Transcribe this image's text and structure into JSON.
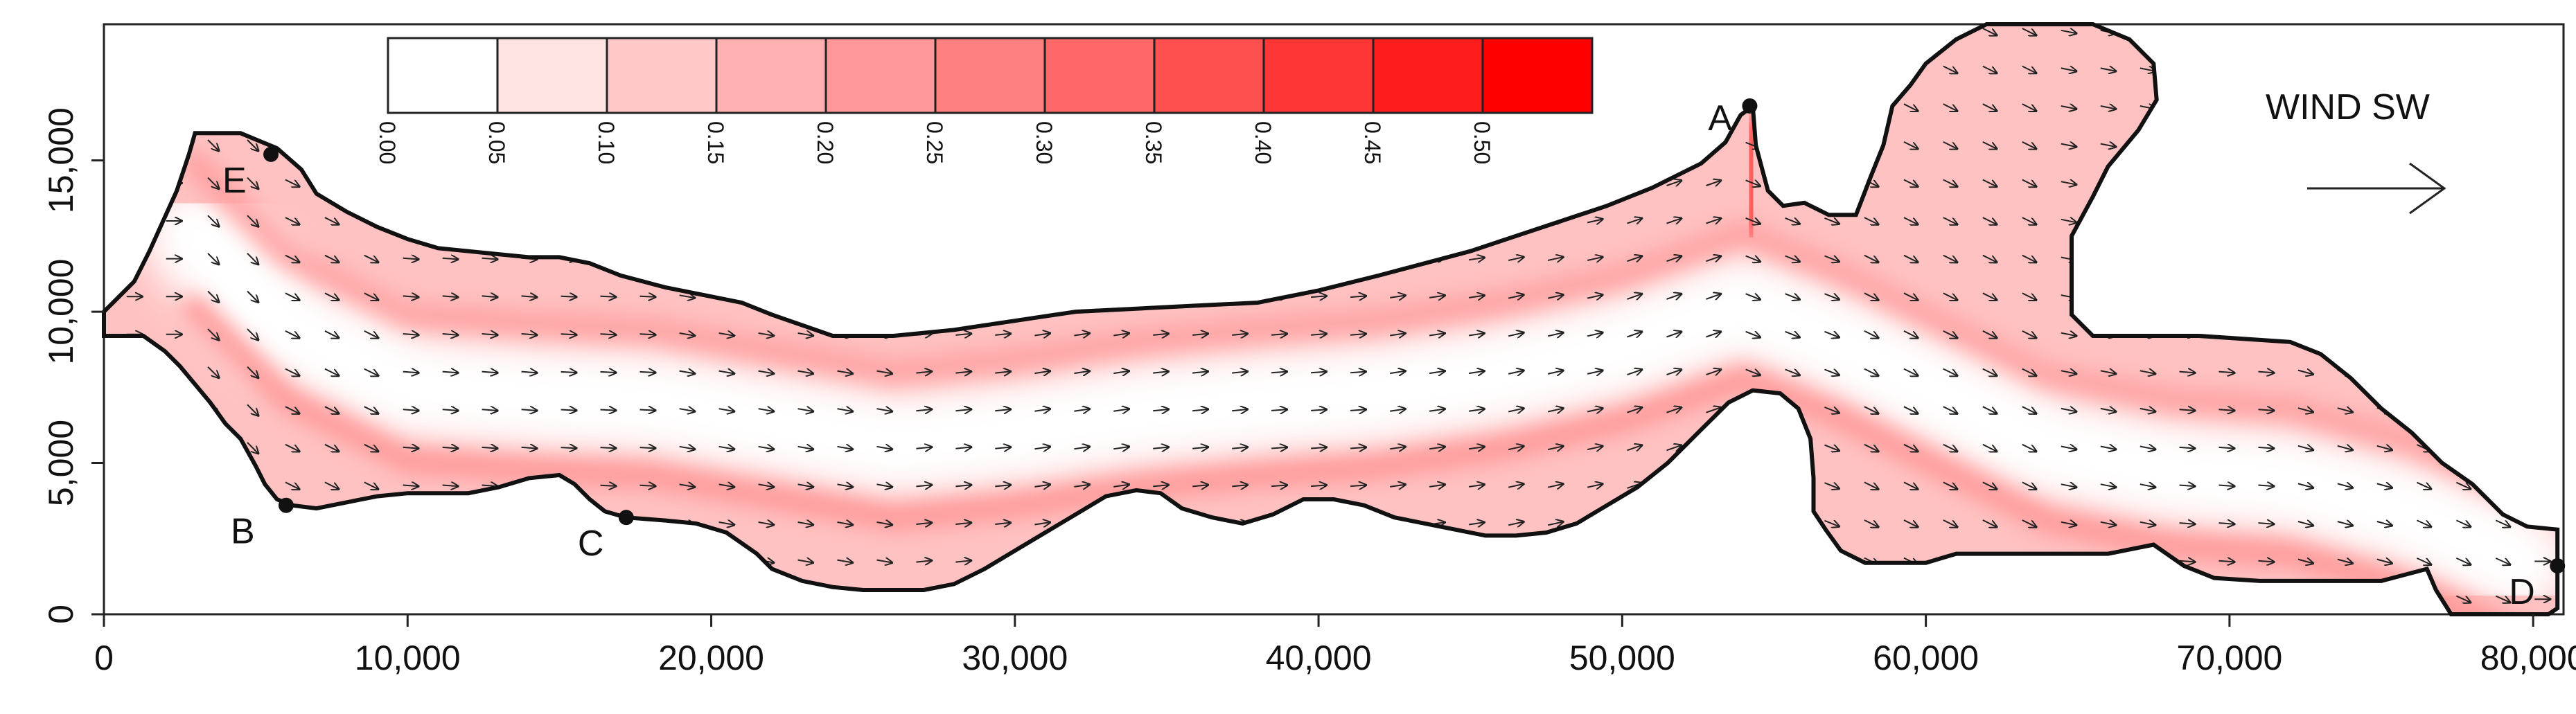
{
  "chart_data": {
    "type": "heatmap",
    "title": "",
    "xlabel": "",
    "ylabel": "",
    "xlim": [
      0,
      81000
    ],
    "ylim": [
      0,
      19500
    ],
    "x_ticks": [
      {
        "value": 0,
        "label": "0"
      },
      {
        "value": 10000,
        "label": "10,000"
      },
      {
        "value": 20000,
        "label": "20,000"
      },
      {
        "value": 30000,
        "label": "30,000"
      },
      {
        "value": 40000,
        "label": "40,000"
      },
      {
        "value": 50000,
        "label": "50,000"
      },
      {
        "value": 60000,
        "label": "60,000"
      },
      {
        "value": 70000,
        "label": "70,000"
      },
      {
        "value": 80000,
        "label": "80,000"
      }
    ],
    "y_ticks": [
      {
        "value": 0,
        "label": "0"
      },
      {
        "value": 5000,
        "label": "5,000"
      },
      {
        "value": 10000,
        "label": "10,000"
      },
      {
        "value": 15000,
        "label": "15,000"
      }
    ],
    "colorbar": {
      "breaks": [
        "0.00",
        "0.05",
        "0.10",
        "0.15",
        "0.20",
        "0.25",
        "0.30",
        "0.35",
        "0.40",
        "0.45",
        "0.50"
      ],
      "colors": [
        "#ffffff",
        "#ffe3e3",
        "#ffc9c9",
        "#ffb0b0",
        "#ff9898",
        "#ff8080",
        "#ff6868",
        "#ff5050",
        "#ff3636",
        "#ff1c1c",
        "#ff0000"
      ]
    },
    "wind": {
      "label": "WIND SW",
      "direction_deg": 0
    },
    "boundary": [
      [
        0,
        9200
      ],
      [
        1300,
        9200
      ],
      [
        2000,
        8700
      ],
      [
        2500,
        8200
      ],
      [
        3000,
        7600
      ],
      [
        3500,
        7000
      ],
      [
        4000,
        6300
      ],
      [
        4500,
        5800
      ],
      [
        5000,
        4900
      ],
      [
        5300,
        4300
      ],
      [
        5700,
        3800
      ],
      [
        6200,
        3600
      ],
      [
        7000,
        3500
      ],
      [
        8000,
        3700
      ],
      [
        9000,
        3900
      ],
      [
        10000,
        4000
      ],
      [
        11000,
        4000
      ],
      [
        12000,
        4000
      ],
      [
        13000,
        4200
      ],
      [
        14000,
        4500
      ],
      [
        15000,
        4600
      ],
      [
        15500,
        4300
      ],
      [
        16000,
        3800
      ],
      [
        16500,
        3400
      ],
      [
        17200,
        3200
      ],
      [
        18500,
        3100
      ],
      [
        19500,
        3000
      ],
      [
        20500,
        2700
      ],
      [
        21500,
        2000
      ],
      [
        22000,
        1500
      ],
      [
        23000,
        1100
      ],
      [
        24000,
        900
      ],
      [
        25000,
        800
      ],
      [
        26000,
        800
      ],
      [
        27000,
        800
      ],
      [
        28000,
        1000
      ],
      [
        29000,
        1500
      ],
      [
        30000,
        2100
      ],
      [
        31000,
        2700
      ],
      [
        32000,
        3300
      ],
      [
        33000,
        3900
      ],
      [
        34000,
        4100
      ],
      [
        34800,
        4000
      ],
      [
        35500,
        3500
      ],
      [
        36500,
        3200
      ],
      [
        37500,
        3000
      ],
      [
        38500,
        3300
      ],
      [
        39500,
        3800
      ],
      [
        40500,
        3800
      ],
      [
        41500,
        3600
      ],
      [
        42500,
        3200
      ],
      [
        43500,
        3000
      ],
      [
        44500,
        2800
      ],
      [
        45500,
        2600
      ],
      [
        46500,
        2600
      ],
      [
        47500,
        2700
      ],
      [
        48500,
        3000
      ],
      [
        49500,
        3600
      ],
      [
        50500,
        4200
      ],
      [
        51500,
        5000
      ],
      [
        52500,
        6000
      ],
      [
        53500,
        7000
      ],
      [
        54300,
        7400
      ],
      [
        55200,
        7300
      ],
      [
        55800,
        6800
      ],
      [
        56200,
        5800
      ],
      [
        56300,
        4500
      ],
      [
        56300,
        3400
      ],
      [
        56700,
        2800
      ],
      [
        57200,
        2100
      ],
      [
        58000,
        1700
      ],
      [
        60000,
        1700
      ],
      [
        61000,
        2000
      ],
      [
        64000,
        2000
      ],
      [
        66000,
        2000
      ],
      [
        67500,
        2300
      ],
      [
        68500,
        1600
      ],
      [
        69500,
        1200
      ],
      [
        71000,
        1100
      ],
      [
        73000,
        1100
      ],
      [
        75000,
        1100
      ],
      [
        76500,
        1500
      ],
      [
        76800,
        800
      ],
      [
        77300,
        0
      ],
      [
        80500,
        0
      ],
      [
        80800,
        200
      ],
      [
        80800,
        2800
      ],
      [
        79800,
        2900
      ],
      [
        79000,
        3300
      ],
      [
        78000,
        4300
      ],
      [
        77000,
        5000
      ],
      [
        76000,
        6000
      ],
      [
        75000,
        6800
      ],
      [
        74000,
        7800
      ],
      [
        73000,
        8600
      ],
      [
        72000,
        9000
      ],
      [
        69000,
        9200
      ],
      [
        67000,
        9200
      ],
      [
        65500,
        9200
      ],
      [
        64800,
        9900
      ],
      [
        64800,
        12500
      ],
      [
        65500,
        13800
      ],
      [
        66000,
        14800
      ],
      [
        67000,
        16000
      ],
      [
        67600,
        17000
      ],
      [
        67500,
        18200
      ],
      [
        66700,
        19000
      ],
      [
        65500,
        19500
      ],
      [
        62000,
        19500
      ],
      [
        61000,
        19000
      ],
      [
        60000,
        18200
      ],
      [
        59500,
        17500
      ],
      [
        58900,
        16800
      ],
      [
        58600,
        15500
      ],
      [
        58200,
        14500
      ],
      [
        57700,
        13200
      ],
      [
        56800,
        13200
      ],
      [
        56000,
        13600
      ],
      [
        55300,
        13500
      ],
      [
        54800,
        14000
      ],
      [
        54400,
        15500
      ],
      [
        54300,
        16800
      ],
      [
        53900,
        16500
      ],
      [
        53400,
        15600
      ],
      [
        52600,
        14900
      ],
      [
        51000,
        14100
      ],
      [
        49500,
        13500
      ],
      [
        48000,
        13000
      ],
      [
        46500,
        12500
      ],
      [
        45000,
        12000
      ],
      [
        43500,
        11600
      ],
      [
        42000,
        11200
      ],
      [
        40000,
        10700
      ],
      [
        38000,
        10300
      ],
      [
        36000,
        10200
      ],
      [
        34000,
        10100
      ],
      [
        32000,
        10000
      ],
      [
        30000,
        9700
      ],
      [
        28000,
        9400
      ],
      [
        26000,
        9200
      ],
      [
        24000,
        9200
      ],
      [
        22000,
        9900
      ],
      [
        21000,
        10300
      ],
      [
        20000,
        10500
      ],
      [
        18500,
        10800
      ],
      [
        17000,
        11200
      ],
      [
        16000,
        11600
      ],
      [
        15000,
        11800
      ],
      [
        14000,
        11800
      ],
      [
        13000,
        11900
      ],
      [
        12000,
        12000
      ],
      [
        11000,
        12100
      ],
      [
        10000,
        12400
      ],
      [
        9000,
        12800
      ],
      [
        8000,
        13300
      ],
      [
        7000,
        13900
      ],
      [
        6500,
        14700
      ],
      [
        5700,
        15400
      ],
      [
        4500,
        15900
      ],
      [
        3000,
        15900
      ],
      [
        2800,
        15200
      ],
      [
        2400,
        14000
      ],
      [
        1500,
        12000
      ],
      [
        1000,
        11000
      ],
      [
        0,
        10000
      ]
    ],
    "centerline": [
      [
        3000,
        12500
      ],
      [
        6000,
        9500
      ],
      [
        10000,
        7500
      ],
      [
        14000,
        7200
      ],
      [
        18000,
        7000
      ],
      [
        22000,
        6300
      ],
      [
        26000,
        5600
      ],
      [
        30000,
        6000
      ],
      [
        34000,
        6600
      ],
      [
        38000,
        7000
      ],
      [
        42000,
        7300
      ],
      [
        46000,
        7900
      ],
      [
        50000,
        8800
      ],
      [
        54000,
        10200
      ],
      [
        57000,
        9000
      ],
      [
        60000,
        7500
      ],
      [
        64000,
        5500
      ],
      [
        68000,
        4700
      ],
      [
        72000,
        4400
      ],
      [
        76000,
        3300
      ],
      [
        79500,
        1700
      ]
    ],
    "annotations": [
      {
        "label": "A",
        "x": 54200,
        "y": 16800
      },
      {
        "label": "B",
        "x": 6000,
        "y": 3600
      },
      {
        "label": "C",
        "x": 17200,
        "y": 3200
      },
      {
        "label": "D",
        "x": 80800,
        "y": 1600
      },
      {
        "label": "E",
        "x": 5500,
        "y": 15200
      }
    ]
  }
}
